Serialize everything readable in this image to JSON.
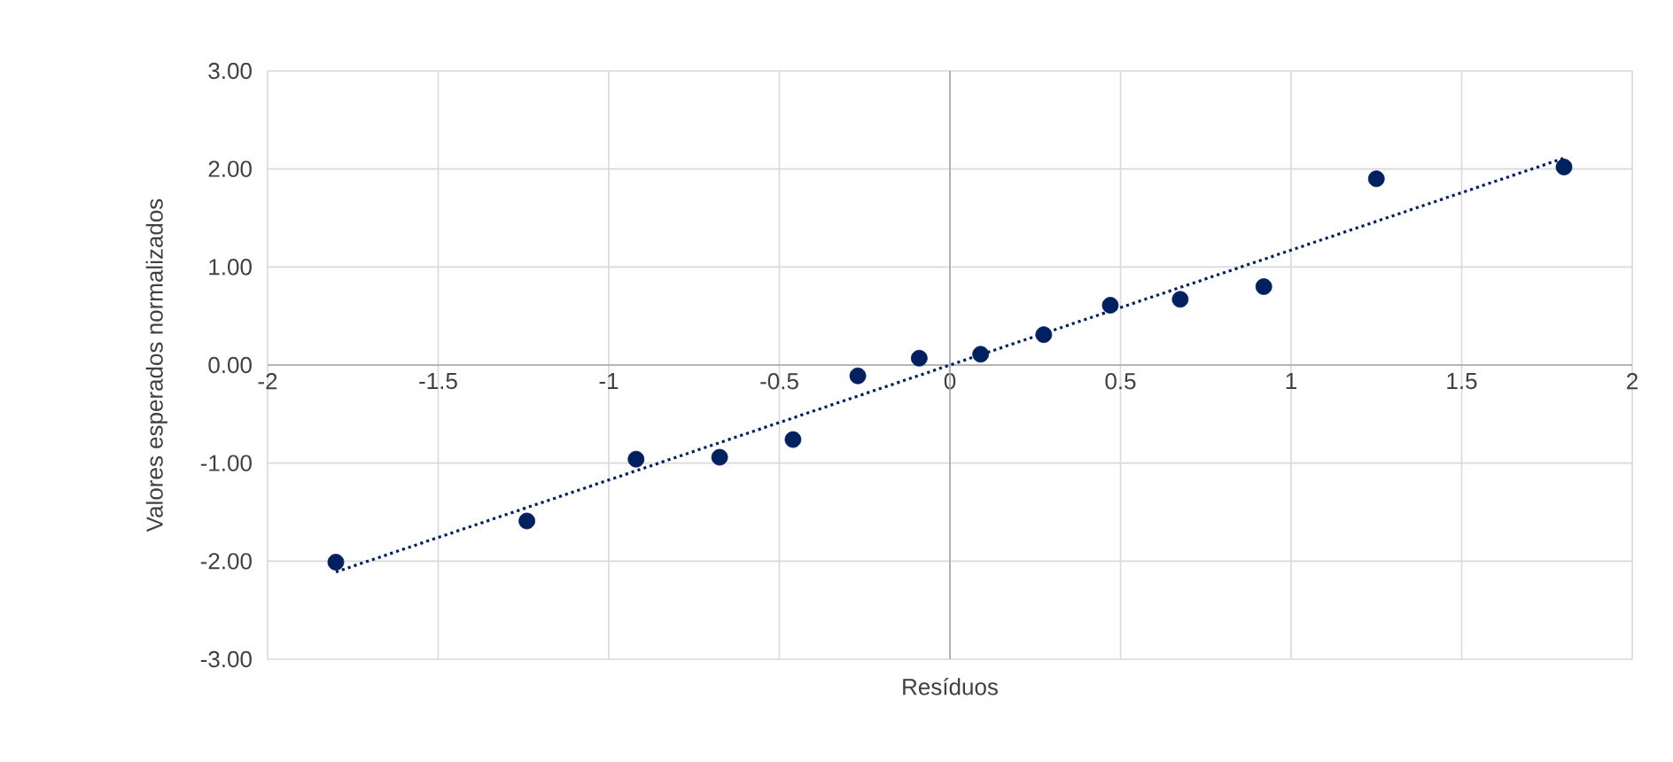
{
  "chart_data": {
    "type": "scatter",
    "xlabel": "Resíduos",
    "ylabel": "Valores esperados normalizados",
    "series": [
      {
        "color": "#002060",
        "marker": "circle",
        "x": [
          -1.8,
          -1.24,
          -0.92,
          -0.675,
          -0.46,
          -0.27,
          -0.09,
          0.09,
          0.275,
          0.47,
          0.675,
          0.92,
          1.25,
          1.8
        ],
        "values": [
          -2.01,
          -1.59,
          -0.96,
          -0.94,
          -0.76,
          -0.11,
          0.07,
          0.11,
          0.31,
          0.61,
          0.67,
          0.8,
          1.9,
          2.02
        ]
      },
      {
        "type": "line",
        "color": "#002060",
        "marker": "none",
        "line_style": "dotted",
        "x": [
          -1.8,
          1.8
        ],
        "values": [
          -2.11,
          2.11
        ]
      }
    ],
    "xlim": [
      -2,
      2
    ],
    "xticks": [
      -2,
      -1.5,
      -1,
      -0.5,
      0,
      0.5,
      1,
      1.5,
      2
    ],
    "ylim": [
      -3,
      3
    ],
    "yticks": [
      {
        "value": -3,
        "label": "-3.00"
      },
      {
        "value": -2,
        "label": "-2.00"
      },
      {
        "value": -1,
        "label": "-1.00"
      },
      {
        "value": 0,
        "label": "0.00"
      },
      {
        "value": 1,
        "label": "1.00"
      },
      {
        "value": 2,
        "label": "2.00"
      },
      {
        "value": 3,
        "label": "3.00"
      }
    ],
    "grid": true
  }
}
